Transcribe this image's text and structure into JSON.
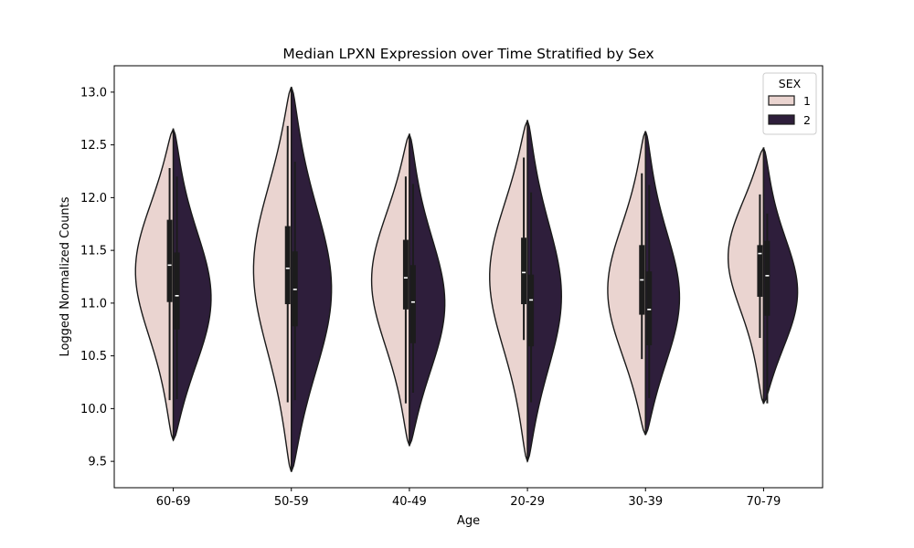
{
  "chart_data": {
    "type": "violin",
    "split": true,
    "title": "Median LPXN Expression over Time Stratified by Sex",
    "xlabel": "Age",
    "ylabel": "Logged Normalized Counts",
    "ylim": [
      9.25,
      13.25
    ],
    "yticks": [
      "9.5",
      "10.0",
      "10.5",
      "11.0",
      "11.5",
      "12.0",
      "12.5",
      "13.0"
    ],
    "categories": [
      "60-69",
      "50-59",
      "40-49",
      "20-29",
      "30-39",
      "70-79"
    ],
    "legend": {
      "title": "SEX",
      "position": "top-right"
    },
    "grid": false,
    "series": [
      {
        "name": "1",
        "color": "#ead4d0",
        "violins": [
          {
            "ymin": 9.7,
            "ymax": 12.65,
            "median": 11.36,
            "q1": 11.01,
            "q3": 11.79,
            "whisker_low": 10.08,
            "whisker_high": 12.28,
            "peak_y": 11.35,
            "width": 0.8
          },
          {
            "ymin": 9.4,
            "ymax": 13.05,
            "median": 11.33,
            "q1": 10.99,
            "q3": 11.73,
            "whisker_low": 10.06,
            "whisker_high": 12.68,
            "peak_y": 11.35,
            "width": 0.8
          },
          {
            "ymin": 9.65,
            "ymax": 12.6,
            "median": 11.24,
            "q1": 10.94,
            "q3": 11.6,
            "whisker_low": 10.05,
            "whisker_high": 12.2,
            "peak_y": 11.25,
            "width": 0.8
          },
          {
            "ymin": 9.5,
            "ymax": 12.73,
            "median": 11.29,
            "q1": 10.99,
            "q3": 11.62,
            "whisker_low": 10.65,
            "whisker_high": 12.38,
            "peak_y": 11.3,
            "width": 0.8
          },
          {
            "ymin": 9.75,
            "ymax": 12.63,
            "median": 11.22,
            "q1": 10.89,
            "q3": 11.55,
            "whisker_low": 10.47,
            "whisker_high": 12.23,
            "peak_y": 11.1,
            "width": 0.8
          },
          {
            "ymin": 10.05,
            "ymax": 12.47,
            "median": 11.47,
            "q1": 11.06,
            "q3": 11.55,
            "whisker_low": 10.67,
            "whisker_high": 12.03,
            "peak_y": 11.5,
            "width": 0.75
          }
        ]
      },
      {
        "name": "2",
        "color": "#2e1e3b",
        "violins": [
          {
            "ymin": 9.7,
            "ymax": 12.65,
            "median": 11.07,
            "q1": 10.75,
            "q3": 11.48,
            "whisker_low": 10.09,
            "whisker_high": 12.2,
            "peak_y": 11.0,
            "width": 0.8
          },
          {
            "ymin": 9.4,
            "ymax": 13.05,
            "median": 11.13,
            "q1": 10.78,
            "q3": 11.49,
            "whisker_low": 10.08,
            "whisker_high": 12.34,
            "peak_y": 11.1,
            "width": 0.85
          },
          {
            "ymin": 9.65,
            "ymax": 12.6,
            "median": 11.01,
            "q1": 10.62,
            "q3": 11.36,
            "whisker_low": 10.15,
            "whisker_high": 12.13,
            "peak_y": 10.95,
            "width": 0.75
          },
          {
            "ymin": 9.5,
            "ymax": 12.73,
            "median": 11.03,
            "q1": 10.59,
            "q3": 11.27,
            "whisker_low": 10.06,
            "whisker_high": 12.05,
            "peak_y": 11.05,
            "width": 0.72
          },
          {
            "ymin": 9.75,
            "ymax": 12.63,
            "median": 10.94,
            "q1": 10.6,
            "q3": 11.3,
            "whisker_low": 10.1,
            "whisker_high": 12.12,
            "peak_y": 11.0,
            "width": 0.72
          },
          {
            "ymin": 10.05,
            "ymax": 12.47,
            "median": 11.26,
            "q1": 10.88,
            "q3": 11.59,
            "whisker_low": 10.05,
            "whisker_high": 11.85,
            "peak_y": 11.05,
            "width": 0.72
          }
        ]
      }
    ]
  }
}
